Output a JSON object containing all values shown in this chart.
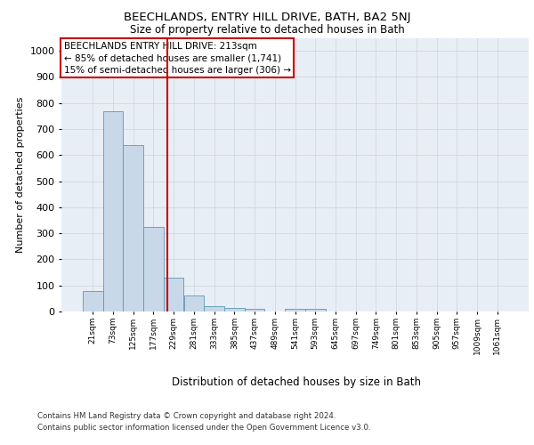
{
  "title": "BEECHLANDS, ENTRY HILL DRIVE, BATH, BA2 5NJ",
  "subtitle": "Size of property relative to detached houses in Bath",
  "xlabel": "Distribution of detached houses by size in Bath",
  "ylabel": "Number of detached properties",
  "bar_labels": [
    "21sqm",
    "73sqm",
    "125sqm",
    "177sqm",
    "229sqm",
    "281sqm",
    "333sqm",
    "385sqm",
    "437sqm",
    "489sqm",
    "541sqm",
    "593sqm",
    "645sqm",
    "697sqm",
    "749sqm",
    "801sqm",
    "853sqm",
    "905sqm",
    "957sqm",
    "1009sqm",
    "1061sqm"
  ],
  "bar_values": [
    80,
    770,
    640,
    325,
    130,
    60,
    22,
    15,
    10,
    0,
    10,
    10,
    0,
    0,
    0,
    0,
    0,
    0,
    0,
    0,
    0
  ],
  "bar_color": "#c8d8e8",
  "bar_edge_color": "#5a9ab5",
  "grid_color": "#d0d8e0",
  "bg_color": "#e8eef5",
  "vline_color": "#cc0000",
  "annotation_title": "BEECHLANDS ENTRY HILL DRIVE: 213sqm",
  "annotation_line1": "← 85% of detached houses are smaller (1,741)",
  "annotation_line2": "15% of semi-detached houses are larger (306) →",
  "annotation_box_color": "#ffffff",
  "annotation_border_color": "#cc0000",
  "ylim": [
    0,
    1050
  ],
  "yticks": [
    0,
    100,
    200,
    300,
    400,
    500,
    600,
    700,
    800,
    900,
    1000
  ],
  "footer1": "Contains HM Land Registry data © Crown copyright and database right 2024.",
  "footer2": "Contains public sector information licensed under the Open Government Licence v3.0."
}
